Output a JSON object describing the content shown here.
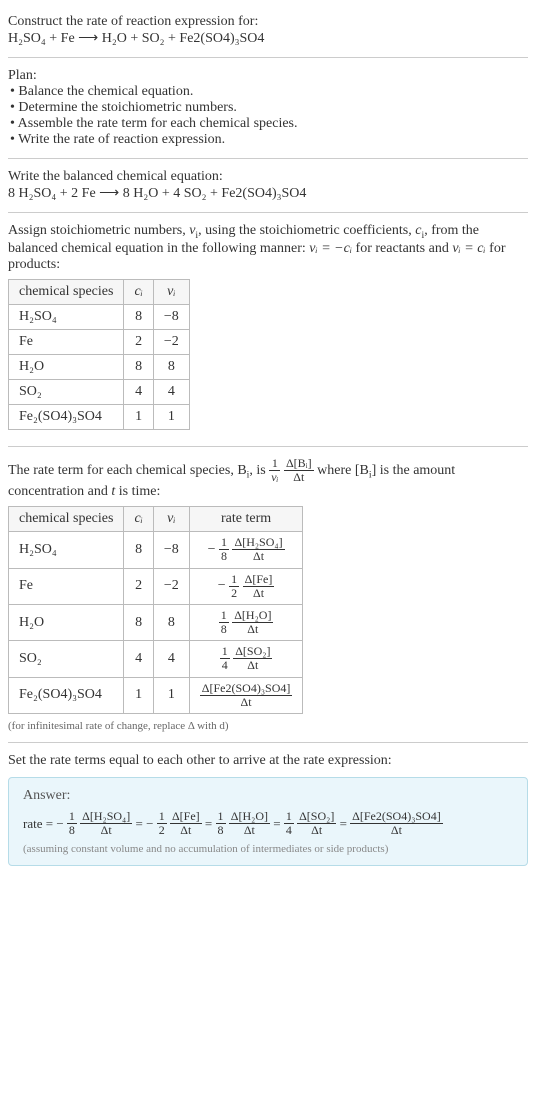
{
  "intro": {
    "construct": "Construct the rate of reaction expression for:",
    "equation_lhs": "H₂SO₄ + Fe",
    "arrow": "⟶",
    "equation_rhs": "H₂O + SO₂ + Fe2(SO4)₃SO4"
  },
  "plan": {
    "title": "Plan:",
    "items": [
      "• Balance the chemical equation.",
      "• Determine the stoichiometric numbers.",
      "• Assemble the rate term for each chemical species.",
      "• Write the rate of reaction expression."
    ]
  },
  "balanced": {
    "title": "Write the balanced chemical equation:",
    "lhs": "8 H₂SO₄ + 2 Fe",
    "arrow": "⟶",
    "rhs": "8 H₂O + 4 SO₂ + Fe2(SO4)₃SO4"
  },
  "assign": {
    "text_a": "Assign stoichiometric numbers, ",
    "nu": "ν",
    "sub_i": "i",
    "text_b": ", using the stoichiometric coefficients, ",
    "c": "c",
    "text_c": ", from the balanced chemical equation in the following manner: ",
    "rel1": "νᵢ = −cᵢ",
    "text_d": " for reactants and ",
    "rel2": "νᵢ = cᵢ",
    "text_e": " for products:"
  },
  "table1": {
    "headers": [
      "chemical species",
      "cᵢ",
      "νᵢ"
    ],
    "rows": [
      {
        "sp": "H₂SO₄",
        "c": "8",
        "v": "−8"
      },
      {
        "sp": "Fe",
        "c": "2",
        "v": "−2"
      },
      {
        "sp": "H₂O",
        "c": "8",
        "v": "8"
      },
      {
        "sp": "SO₂",
        "c": "4",
        "v": "4"
      },
      {
        "sp": "Fe₂(SO4)₃SO4",
        "c": "1",
        "v": "1"
      }
    ]
  },
  "rateterm_intro": {
    "a": "The rate term for each chemical species, B",
    "b": ", is ",
    "one": "1",
    "nu": "νᵢ",
    "dBi": "Δ[Bᵢ]",
    "dt": "Δt",
    "c": " where [B",
    "d": "] is the amount concentration and ",
    "t": "t",
    "e": " is time:"
  },
  "table2": {
    "headers": [
      "chemical species",
      "cᵢ",
      "νᵢ",
      "rate term"
    ],
    "rows": [
      {
        "sp": "H₂SO₄",
        "c": "8",
        "v": "−8",
        "sign": "−",
        "coef_num": "1",
        "coef_den": "8",
        "d_num": "Δ[H₂SO₄]",
        "d_den": "Δt"
      },
      {
        "sp": "Fe",
        "c": "2",
        "v": "−2",
        "sign": "−",
        "coef_num": "1",
        "coef_den": "2",
        "d_num": "Δ[Fe]",
        "d_den": "Δt"
      },
      {
        "sp": "H₂O",
        "c": "8",
        "v": "8",
        "sign": "",
        "coef_num": "1",
        "coef_den": "8",
        "d_num": "Δ[H₂O]",
        "d_den": "Δt"
      },
      {
        "sp": "SO₂",
        "c": "4",
        "v": "4",
        "sign": "",
        "coef_num": "1",
        "coef_den": "4",
        "d_num": "Δ[SO₂]",
        "d_den": "Δt"
      },
      {
        "sp": "Fe₂(SO4)₃SO4",
        "c": "1",
        "v": "1",
        "sign": "",
        "coef_num": "",
        "coef_den": "",
        "d_num": "Δ[Fe2(SO4)₃SO4]",
        "d_den": "Δt"
      }
    ],
    "note": "(for infinitesimal rate of change, replace Δ with d)"
  },
  "setequal": "Set the rate terms equal to each other to arrive at the rate expression:",
  "answer": {
    "label": "Answer:",
    "rate": "rate = ",
    "terms": [
      {
        "sign": "−",
        "coef_num": "1",
        "coef_den": "8",
        "d_num": "Δ[H₂SO₄]",
        "d_den": "Δt"
      },
      {
        "sign": "−",
        "coef_num": "1",
        "coef_den": "2",
        "d_num": "Δ[Fe]",
        "d_den": "Δt"
      },
      {
        "sign": "",
        "coef_num": "1",
        "coef_den": "8",
        "d_num": "Δ[H₂O]",
        "d_den": "Δt"
      },
      {
        "sign": "",
        "coef_num": "1",
        "coef_den": "4",
        "d_num": "Δ[SO₂]",
        "d_den": "Δt"
      },
      {
        "sign": "",
        "coef_num": "",
        "coef_den": "",
        "d_num": "Δ[Fe2(SO4)₃SO4]",
        "d_den": "Δt"
      }
    ],
    "eq": " = ",
    "note": "(assuming constant volume and no accumulation of intermediates or side products)"
  }
}
